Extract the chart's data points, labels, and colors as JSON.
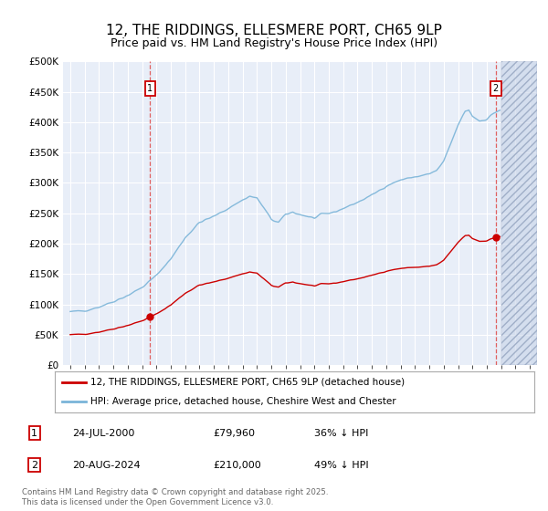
{
  "title": "12, THE RIDDINGS, ELLESMERE PORT, CH65 9LP",
  "subtitle": "Price paid vs. HM Land Registry's House Price Index (HPI)",
  "legend_line1": "12, THE RIDDINGS, ELLESMERE PORT, CH65 9LP (detached house)",
  "legend_line2": "HPI: Average price, detached house, Cheshire West and Chester",
  "annotation1_label": "1",
  "annotation1_date": "24-JUL-2000",
  "annotation1_price": "£79,960",
  "annotation1_hpi": "36% ↓ HPI",
  "annotation2_label": "2",
  "annotation2_date": "20-AUG-2024",
  "annotation2_price": "£210,000",
  "annotation2_hpi": "49% ↓ HPI",
  "sale1_year": 2000.56,
  "sale1_price": 79960,
  "sale2_year": 2024.63,
  "sale2_price": 210000,
  "footer": "Contains HM Land Registry data © Crown copyright and database right 2025.\nThis data is licensed under the Open Government Licence v3.0.",
  "ylim": [
    0,
    500000
  ],
  "xlim": [
    1994.5,
    2027.5
  ],
  "yticks": [
    0,
    50000,
    100000,
    150000,
    200000,
    250000,
    300000,
    350000,
    400000,
    450000,
    500000
  ],
  "xticks": [
    1995,
    1996,
    1997,
    1998,
    1999,
    2000,
    2001,
    2002,
    2003,
    2004,
    2005,
    2006,
    2007,
    2008,
    2009,
    2010,
    2011,
    2012,
    2013,
    2014,
    2015,
    2016,
    2017,
    2018,
    2019,
    2020,
    2021,
    2022,
    2023,
    2024,
    2025,
    2026,
    2027
  ],
  "hpi_color": "#7ab4d8",
  "price_color": "#cc0000",
  "bg_color": "#e8eef8",
  "grid_color": "#ffffff",
  "title_fontsize": 11,
  "subtitle_fontsize": 9
}
